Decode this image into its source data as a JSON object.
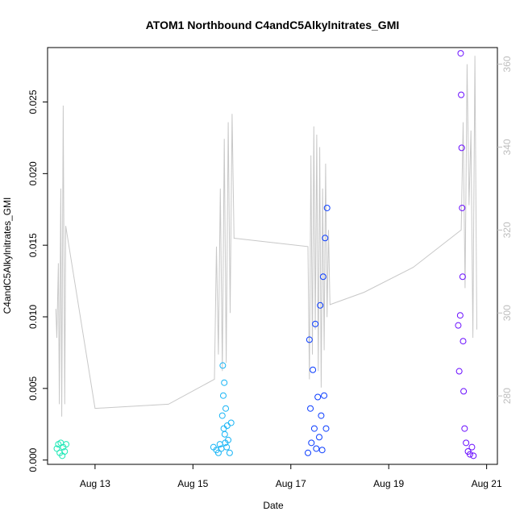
{
  "chart_data": {
    "type": "scatter",
    "title": "ATOM1 Northbound C4andC5Alkylnitrates_GMI",
    "xlabel": "Date",
    "ylabel": "C4andC5Alkylnitrates_GMI",
    "x_ticks": [
      "Aug 13",
      "Aug 15",
      "Aug 17",
      "Aug 19",
      "Aug 21"
    ],
    "x_tick_values": [
      13,
      15,
      17,
      19,
      21
    ],
    "xlim": [
      12.03,
      21.22
    ],
    "y_ticks": [
      "0.000",
      "0.005",
      "0.010",
      "0.015",
      "0.020",
      "0.025"
    ],
    "y_tick_values": [
      0,
      0.005,
      0.01,
      0.015,
      0.02,
      0.025
    ],
    "ylim": [
      -0.0003,
      0.0288
    ],
    "y2_ticks": [
      "280",
      "300",
      "320",
      "340",
      "360"
    ],
    "y2_tick_values": [
      280,
      300,
      320,
      340,
      360
    ],
    "y2lim": [
      263.5,
      364.0
    ],
    "grid": false,
    "legend": "none",
    "colors": {
      "flight1": "#1ee8b6",
      "flight2": "#17b4f5",
      "flight3": "#0a3cff",
      "flight4": "#6a0dff",
      "secondary_line": "#c8c8c8",
      "axis": "#000000",
      "right_axis": "#bdbdbd"
    },
    "series": [
      {
        "color": "flight1",
        "x": [
          12.22,
          12.25,
          12.28,
          12.3,
          12.33,
          12.35,
          12.38,
          12.41
        ],
        "y": [
          0.0008,
          0.0011,
          0.0005,
          0.0012,
          0.0003,
          0.0009,
          0.0006,
          0.0011
        ]
      },
      {
        "color": "flight2",
        "x": [
          15.42,
          15.48,
          15.52,
          15.55,
          15.58,
          15.6,
          15.61,
          15.62,
          15.63,
          15.64,
          15.65,
          15.66,
          15.67,
          15.69,
          15.7,
          15.72,
          15.75,
          15.78
        ],
        "y": [
          0.0009,
          0.0007,
          0.0005,
          0.0011,
          0.0008,
          0.0031,
          0.0066,
          0.0045,
          0.0022,
          0.0054,
          0.0018,
          0.0012,
          0.0036,
          0.0009,
          0.0024,
          0.0014,
          0.0005,
          0.0026
        ]
      },
      {
        "color": "flight3",
        "x": [
          17.35,
          17.38,
          17.4,
          17.42,
          17.45,
          17.48,
          17.5,
          17.52,
          17.55,
          17.58,
          17.6,
          17.62,
          17.64,
          17.66,
          17.68,
          17.7,
          17.72,
          17.74
        ],
        "y": [
          0.0005,
          0.0084,
          0.0036,
          0.0012,
          0.0063,
          0.0022,
          0.0095,
          0.0008,
          0.0044,
          0.0016,
          0.0108,
          0.0031,
          0.0007,
          0.0128,
          0.0045,
          0.0155,
          0.0022,
          0.0176
        ]
      },
      {
        "color": "flight4",
        "x": [
          20.42,
          20.44,
          20.46,
          20.47,
          20.48,
          20.49,
          20.5,
          20.51,
          20.52,
          20.53,
          20.55,
          20.58,
          20.62,
          20.66,
          20.7,
          20.73
        ],
        "y": [
          0.0094,
          0.0062,
          0.0101,
          0.0284,
          0.0255,
          0.0218,
          0.0176,
          0.0128,
          0.0083,
          0.0048,
          0.0022,
          0.0012,
          0.0006,
          0.0004,
          0.0009,
          0.0003
        ]
      }
    ],
    "secondary_series": {
      "color": "secondary_line",
      "x": [
        12.2,
        12.22,
        12.25,
        12.27,
        12.3,
        12.32,
        12.35,
        12.38,
        12.4,
        13.0,
        14.5,
        15.44,
        15.48,
        15.52,
        15.56,
        15.6,
        15.64,
        15.68,
        15.72,
        15.76,
        15.8,
        15.84,
        15.86,
        17.35,
        17.38,
        17.41,
        17.44,
        17.47,
        17.5,
        17.53,
        17.56,
        17.59,
        17.62,
        17.65,
        17.68,
        17.71,
        17.74,
        17.77,
        17.8,
        18.5,
        19.5,
        20.48,
        20.52,
        20.56,
        20.6,
        20.64,
        20.68,
        20.72,
        20.76,
        20.8
      ],
      "y": [
        301,
        294,
        312,
        278,
        330,
        275,
        350,
        278,
        321,
        277,
        278,
        284,
        316,
        290,
        330,
        286,
        342,
        288,
        346,
        300,
        348,
        318,
        318,
        316,
        284,
        338,
        290,
        345,
        296,
        343,
        286,
        340,
        282,
        330,
        291,
        336,
        299,
        320,
        302,
        305,
        311,
        320,
        346,
        306,
        360,
        326,
        344,
        294,
        362,
        296
      ]
    }
  }
}
